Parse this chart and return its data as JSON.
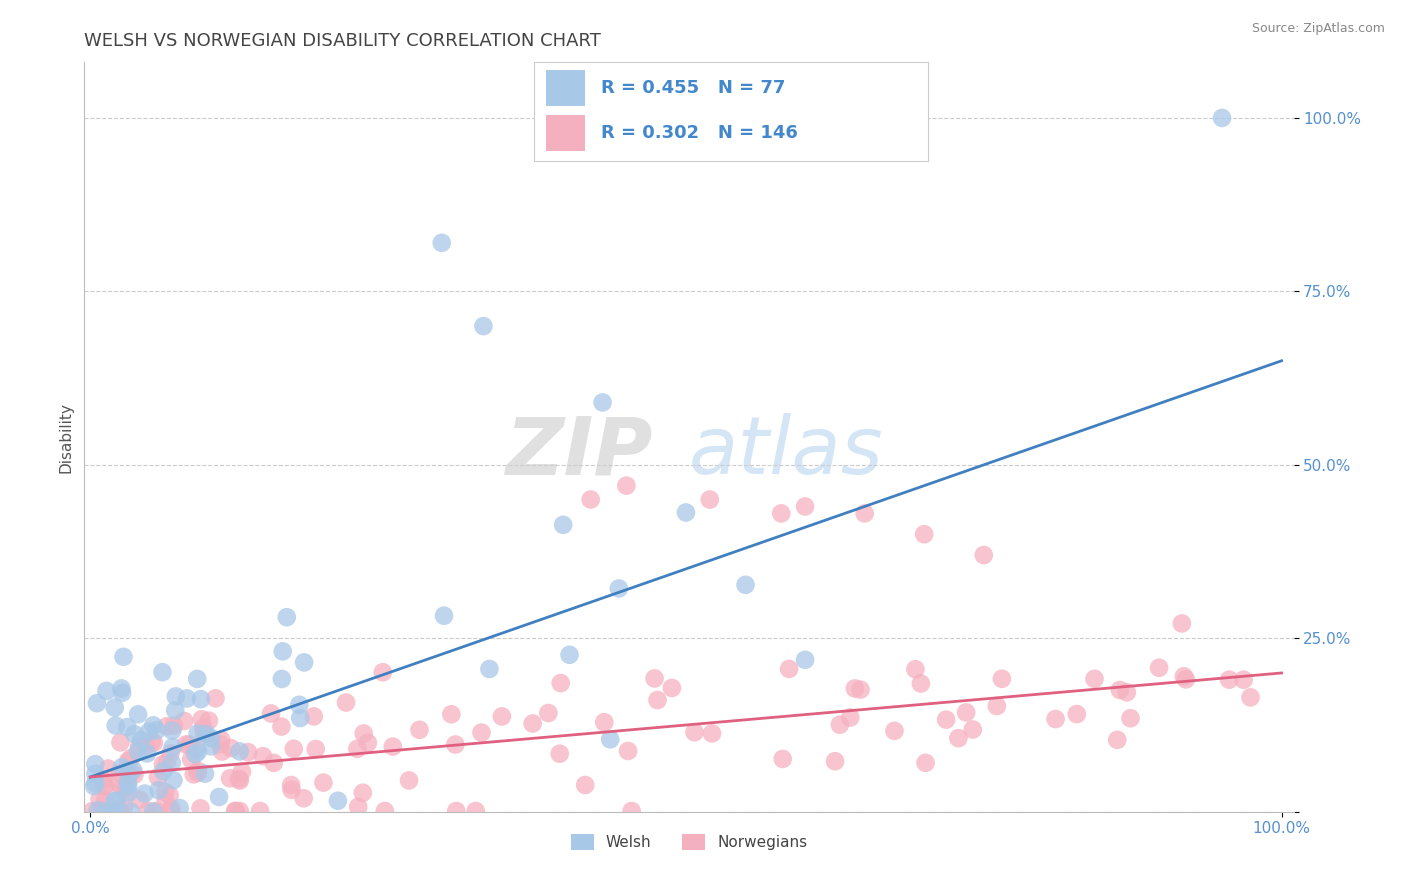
{
  "title": "WELSH VS NORWEGIAN DISABILITY CORRELATION CHART",
  "source": "Source: ZipAtlas.com",
  "ylabel": "Disability",
  "watermark": "ZIPatlas",
  "welsh_R": 0.455,
  "welsh_N": 77,
  "norwegian_R": 0.302,
  "norwegian_N": 146,
  "welsh_color": "#A8C8E8",
  "norwegian_color": "#F5B0C0",
  "welsh_line_color": "#4080C0",
  "norwegian_line_color": "#E06080",
  "welsh_regression_start": 0.05,
  "welsh_regression_end": 0.65,
  "norwegian_regression_start": 0.05,
  "norwegian_regression_end": 0.2,
  "background_color": "#FFFFFF",
  "grid_color": "#CCCCCC",
  "title_color": "#444444",
  "tick_label_color": "#5590D0",
  "legend_text_color": "#4488CC",
  "ytick_labels": [
    "",
    "25.0%",
    "50.0%",
    "75.0%",
    "100.0%"
  ],
  "ytick_values": [
    0.0,
    0.25,
    0.5,
    0.75,
    1.0
  ],
  "xtick_labels": [
    "0.0%",
    "100.0%"
  ],
  "xtick_values": [
    0.0,
    1.0
  ]
}
